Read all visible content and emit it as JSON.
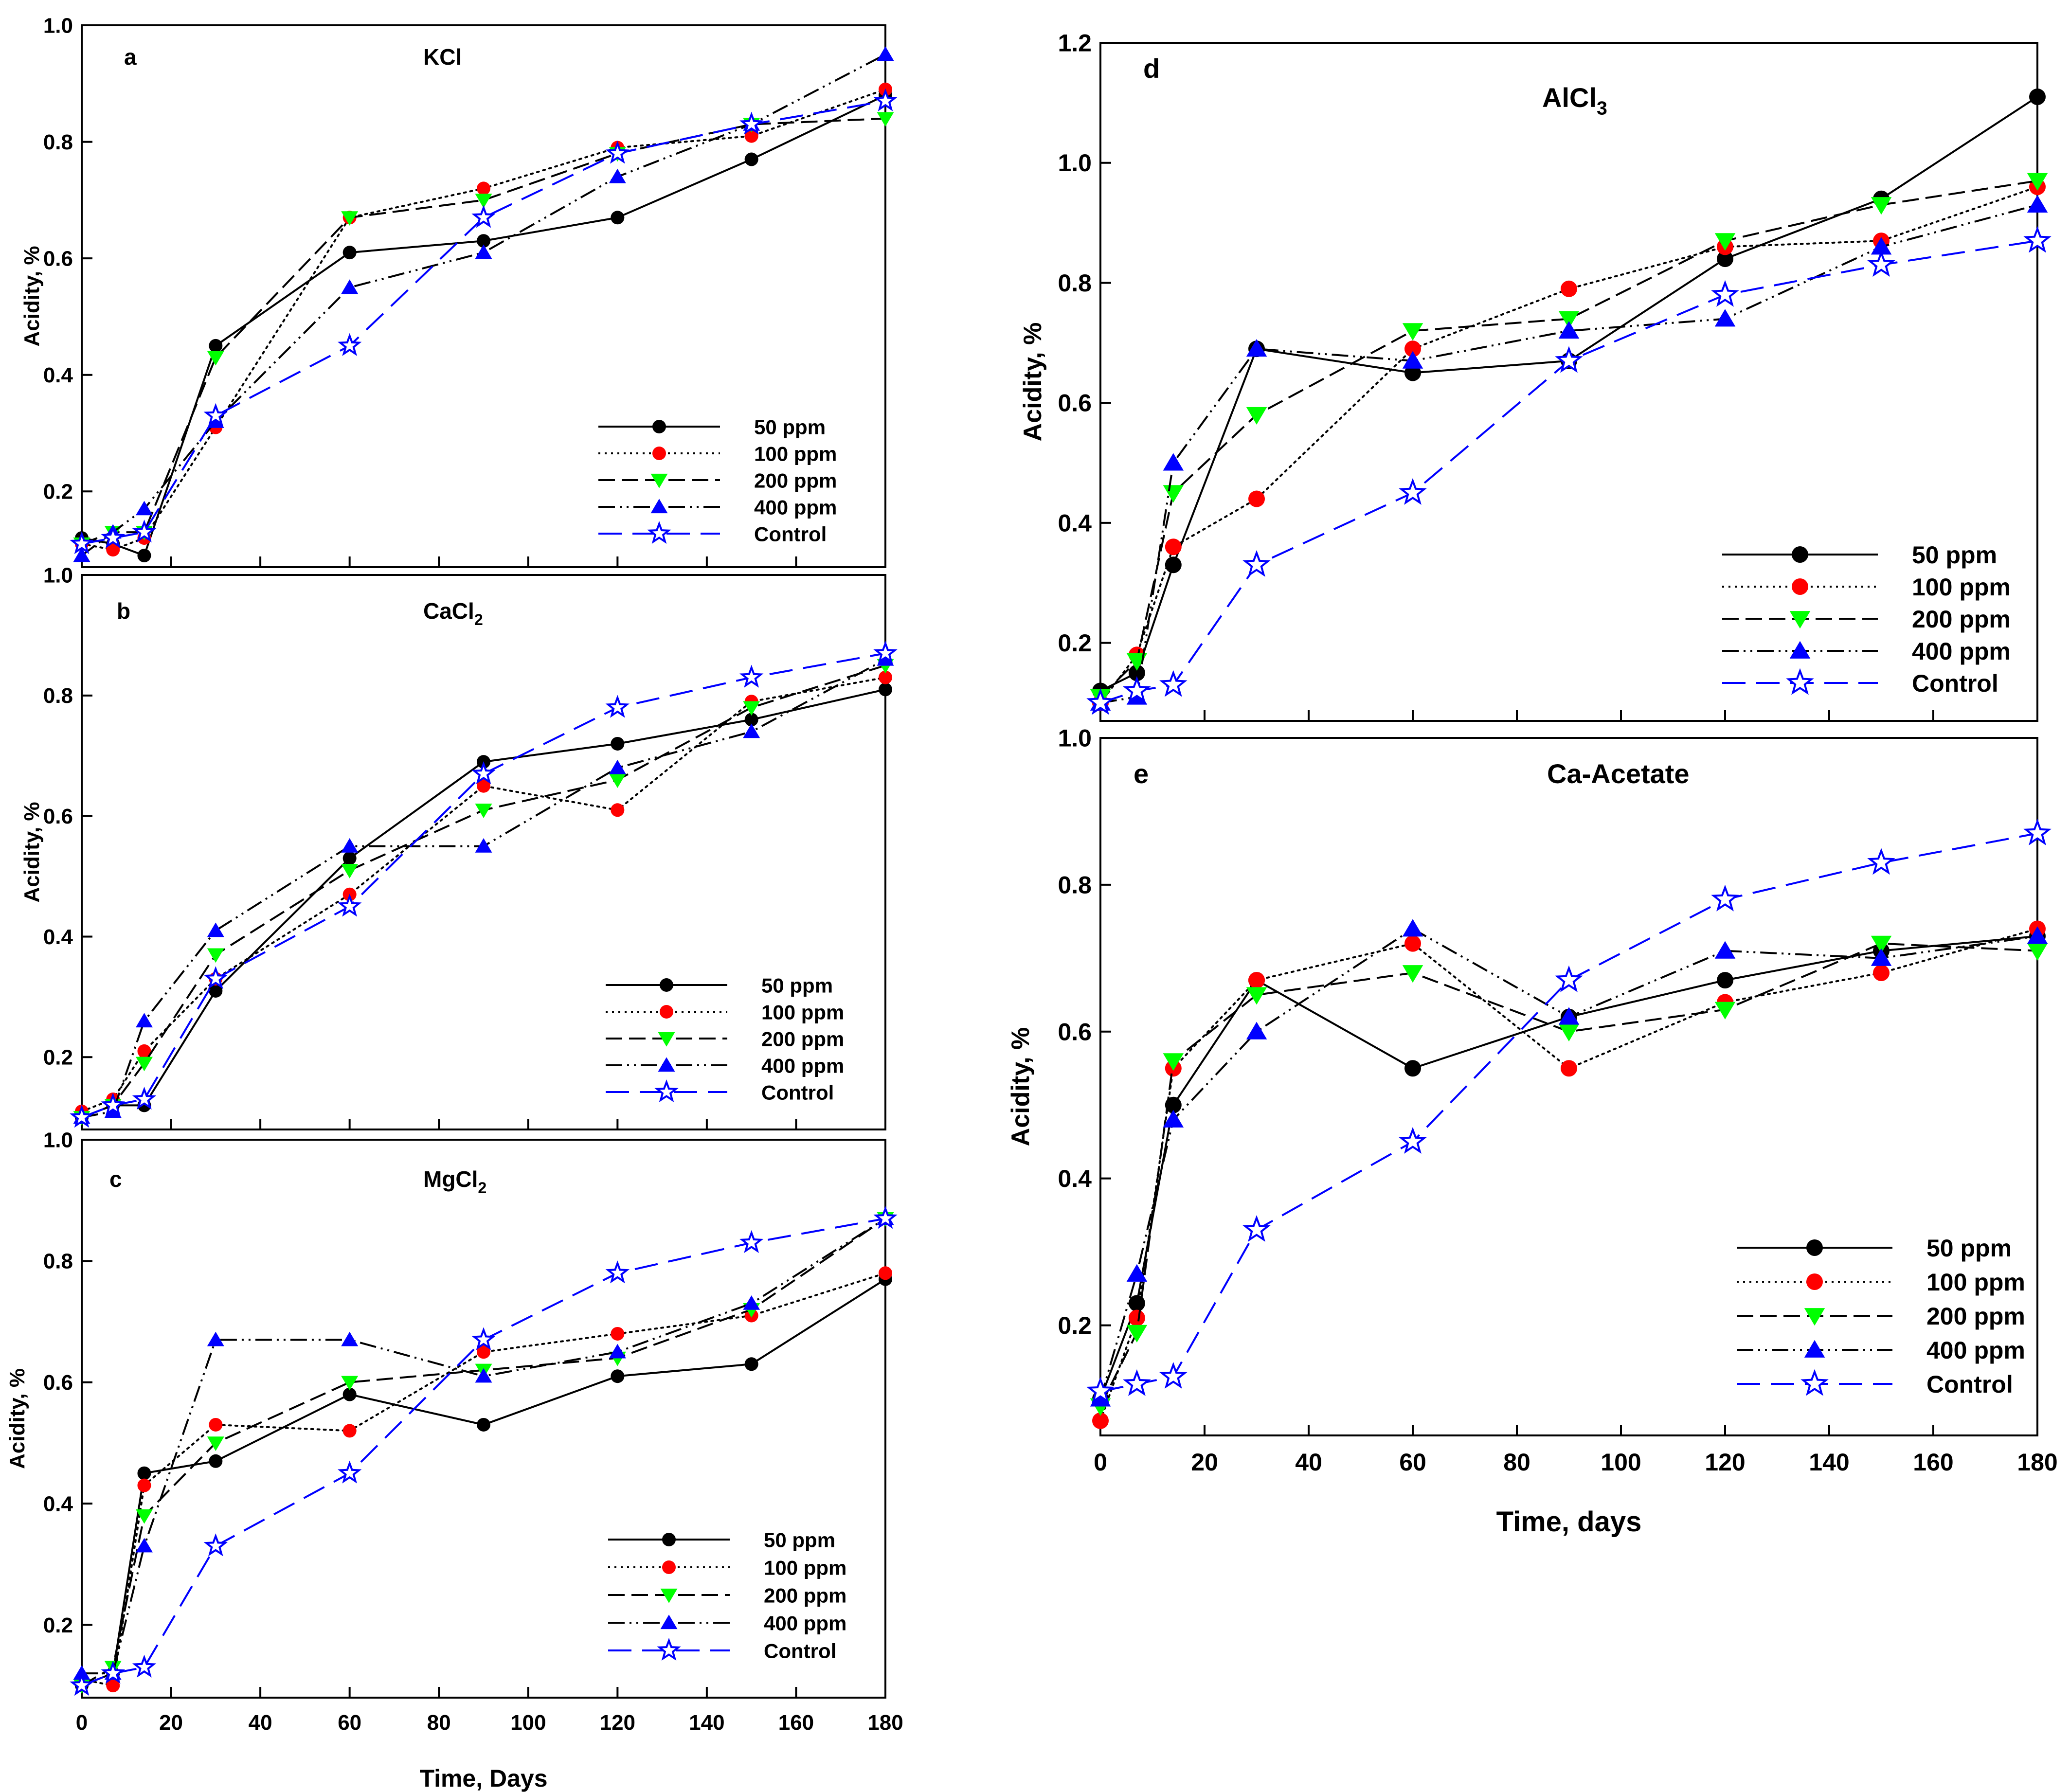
{
  "figure": {
    "legend_labels": [
      "50 ppm",
      "100 ppm",
      "200 ppm",
      "400 ppm",
      "Control"
    ],
    "series_styles": [
      {
        "name": "50 ppm",
        "line": "#000000",
        "dash": "solid",
        "marker": "circle",
        "marker_color": "#000000"
      },
      {
        "name": "100 ppm",
        "line": "#000000",
        "dash": "dotted",
        "marker": "circle",
        "marker_color": "#ff0000"
      },
      {
        "name": "200 ppm",
        "line": "#000000",
        "dash": "dashed",
        "marker": "triangle-down",
        "marker_color": "#00ff00"
      },
      {
        "name": "400 ppm",
        "line": "#000000",
        "dash": "dash-dot-dot",
        "marker": "triangle-up",
        "marker_color": "#0000ff"
      },
      {
        "name": "Control",
        "line": "#0000ff",
        "dash": "long-dash",
        "marker": "star-open",
        "marker_color": "#0000ff"
      }
    ]
  },
  "chart_data": [
    {
      "panel": "a",
      "type": "line",
      "title": "KCl",
      "title_sub": "",
      "xlabel": "",
      "ylabel": "Acidity, %",
      "xlim": [
        0,
        180
      ],
      "ylim": [
        0.07,
        1.0
      ],
      "xticks": [],
      "yticks": [
        0.2,
        0.4,
        0.6,
        0.8,
        1.0
      ],
      "x": [
        0,
        7,
        14,
        30,
        60,
        90,
        120,
        150,
        180
      ],
      "series": [
        {
          "name": "50 ppm",
          "values": [
            0.12,
            0.11,
            0.09,
            0.45,
            0.61,
            0.63,
            0.67,
            0.77,
            0.88
          ]
        },
        {
          "name": "100 ppm",
          "values": [
            0.11,
            0.1,
            0.12,
            0.31,
            0.67,
            0.72,
            0.79,
            0.81,
            0.89
          ]
        },
        {
          "name": "200 ppm",
          "values": [
            0.11,
            0.13,
            0.13,
            0.43,
            0.67,
            0.7,
            0.78,
            0.83,
            0.84
          ]
        },
        {
          "name": "400 ppm",
          "values": [
            0.09,
            0.13,
            0.17,
            0.32,
            0.55,
            0.61,
            0.74,
            0.83,
            0.95
          ]
        },
        {
          "name": "Control",
          "values": [
            0.11,
            0.12,
            0.13,
            0.33,
            0.45,
            0.67,
            0.78,
            0.83,
            0.87
          ]
        }
      ]
    },
    {
      "panel": "b",
      "type": "line",
      "title": "CaCl",
      "title_sub": "2",
      "xlabel": "",
      "ylabel": "Acidity, %",
      "xlim": [
        0,
        180
      ],
      "ylim": [
        0.08,
        1.0
      ],
      "xticks": [],
      "yticks": [
        0.2,
        0.4,
        0.6,
        0.8,
        1.0
      ],
      "x": [
        0,
        7,
        14,
        30,
        60,
        90,
        120,
        150,
        180
      ],
      "series": [
        {
          "name": "50 ppm",
          "values": [
            0.1,
            0.12,
            0.12,
            0.31,
            0.53,
            0.69,
            0.72,
            0.76,
            0.81
          ]
        },
        {
          "name": "100 ppm",
          "values": [
            0.11,
            0.13,
            0.21,
            0.33,
            0.47,
            0.65,
            0.61,
            0.79,
            0.83
          ]
        },
        {
          "name": "200 ppm",
          "values": [
            0.1,
            0.12,
            0.19,
            0.37,
            0.51,
            0.61,
            0.66,
            0.78,
            0.85
          ]
        },
        {
          "name": "400 ppm",
          "values": [
            0.1,
            0.11,
            0.26,
            0.41,
            0.55,
            0.55,
            0.68,
            0.74,
            0.86
          ]
        },
        {
          "name": "Control",
          "values": [
            0.1,
            0.12,
            0.13,
            0.33,
            0.45,
            0.67,
            0.78,
            0.83,
            0.87
          ]
        }
      ]
    },
    {
      "panel": "c",
      "type": "line",
      "title": "MgCl",
      "title_sub": "2",
      "xlabel": "Time, Days",
      "ylabel": "Acidity, %",
      "xlim": [
        0,
        180
      ],
      "ylim": [
        0.08,
        1.0
      ],
      "xticks": [
        0,
        20,
        40,
        60,
        80,
        100,
        120,
        140,
        160,
        180
      ],
      "yticks": [
        0.2,
        0.4,
        0.6,
        0.8,
        1.0
      ],
      "x": [
        0,
        7,
        14,
        30,
        60,
        90,
        120,
        150,
        180
      ],
      "series": [
        {
          "name": "50 ppm",
          "values": [
            0.1,
            0.12,
            0.45,
            0.47,
            0.58,
            0.53,
            0.61,
            0.63,
            0.77
          ]
        },
        {
          "name": "100 ppm",
          "values": [
            0.11,
            0.1,
            0.43,
            0.53,
            0.52,
            0.65,
            0.68,
            0.71,
            0.78
          ]
        },
        {
          "name": "200 ppm",
          "values": [
            0.1,
            0.13,
            0.38,
            0.5,
            0.6,
            0.62,
            0.64,
            0.72,
            0.87
          ]
        },
        {
          "name": "400 ppm",
          "values": [
            0.12,
            0.12,
            0.33,
            0.67,
            0.67,
            0.61,
            0.65,
            0.73,
            0.87
          ]
        },
        {
          "name": "Control",
          "values": [
            0.1,
            0.12,
            0.13,
            0.33,
            0.45,
            0.67,
            0.78,
            0.83,
            0.87
          ]
        }
      ]
    },
    {
      "panel": "d",
      "type": "line",
      "title": "AlCl",
      "title_sub": "3",
      "xlabel": "",
      "ylabel": "Acidity, %",
      "xlim": [
        0,
        180
      ],
      "ylim": [
        0.07,
        1.2
      ],
      "xticks": [],
      "yticks": [
        0.2,
        0.4,
        0.6,
        0.8,
        1.0,
        1.2
      ],
      "x": [
        0,
        7,
        14,
        30,
        60,
        90,
        120,
        150,
        180
      ],
      "series": [
        {
          "name": "50 ppm",
          "values": [
            0.12,
            0.15,
            0.33,
            0.69,
            0.65,
            0.67,
            0.84,
            0.94,
            1.11
          ]
        },
        {
          "name": "100 ppm",
          "values": [
            0.1,
            0.18,
            0.36,
            0.44,
            0.69,
            0.79,
            0.86,
            0.87,
            0.96
          ]
        },
        {
          "name": "200 ppm",
          "values": [
            0.11,
            0.17,
            0.45,
            0.58,
            0.72,
            0.74,
            0.87,
            0.93,
            0.97
          ]
        },
        {
          "name": "400 ppm",
          "values": [
            0.1,
            0.11,
            0.5,
            0.69,
            0.67,
            0.72,
            0.74,
            0.86,
            0.93
          ]
        },
        {
          "name": "Control",
          "values": [
            0.1,
            0.12,
            0.13,
            0.33,
            0.45,
            0.67,
            0.78,
            0.83,
            0.87
          ]
        }
      ]
    },
    {
      "panel": "e",
      "type": "line",
      "title": "Ca-Acetate",
      "title_sub": "",
      "xlabel": "Time, days",
      "ylabel": "Acidity, %",
      "xlim": [
        0,
        180
      ],
      "ylim": [
        0.05,
        1.0
      ],
      "xticks": [
        0,
        20,
        40,
        60,
        80,
        100,
        120,
        140,
        160,
        180
      ],
      "yticks": [
        0.2,
        0.4,
        0.6,
        0.8,
        1.0
      ],
      "x": [
        0,
        7,
        14,
        30,
        60,
        90,
        120,
        150,
        180
      ],
      "series": [
        {
          "name": "50 ppm",
          "values": [
            0.1,
            0.23,
            0.5,
            0.67,
            0.55,
            0.62,
            0.67,
            0.71,
            0.73
          ]
        },
        {
          "name": "100 ppm",
          "values": [
            0.07,
            0.21,
            0.55,
            0.67,
            0.72,
            0.55,
            0.64,
            0.68,
            0.74
          ]
        },
        {
          "name": "200 ppm",
          "values": [
            0.09,
            0.19,
            0.56,
            0.65,
            0.68,
            0.6,
            0.63,
            0.72,
            0.71
          ]
        },
        {
          "name": "400 ppm",
          "values": [
            0.1,
            0.27,
            0.48,
            0.6,
            0.74,
            0.62,
            0.71,
            0.7,
            0.73
          ]
        },
        {
          "name": "Control",
          "values": [
            0.11,
            0.12,
            0.13,
            0.33,
            0.45,
            0.67,
            0.78,
            0.83,
            0.87
          ]
        }
      ]
    }
  ]
}
